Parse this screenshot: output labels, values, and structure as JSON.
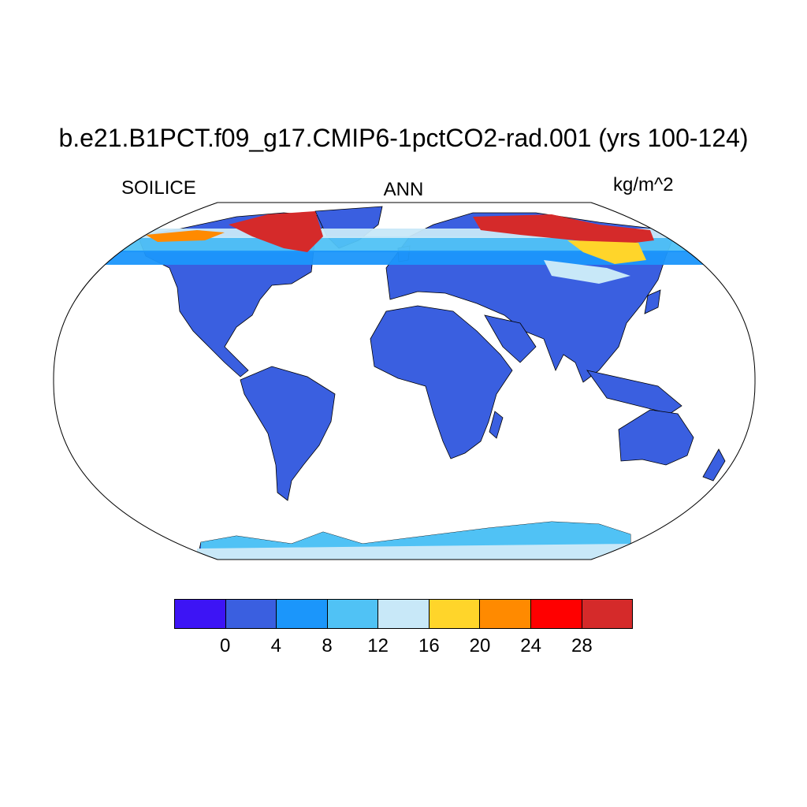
{
  "header": {
    "title": "b.e21.B1PCT.f09_g17.CMIP6-1pctCO2-rad.001 (yrs 100-124)",
    "left_label": "SOILICE",
    "center_label": "ANN",
    "right_label": "kg/m^2"
  },
  "colorbar": {
    "colors": [
      "#3d14f5",
      "#3a5fe0",
      "#1b96fb",
      "#50c2f5",
      "#c8e8f8",
      "#ffd52a",
      "#ff8a00",
      "#ff0000",
      "#d52a2a"
    ],
    "labels": [
      "0",
      "4",
      "8",
      "12",
      "16",
      "20",
      "24",
      "28"
    ]
  },
  "map_colors": {
    "land_base": "#3a5fe0",
    "low": "#1b96fb",
    "mid": "#50c2f5",
    "pale": "#c8e8f8",
    "yellow": "#ffd52a",
    "orange": "#ff8a00",
    "red": "#ff0000",
    "dark_red": "#d52a2a"
  }
}
